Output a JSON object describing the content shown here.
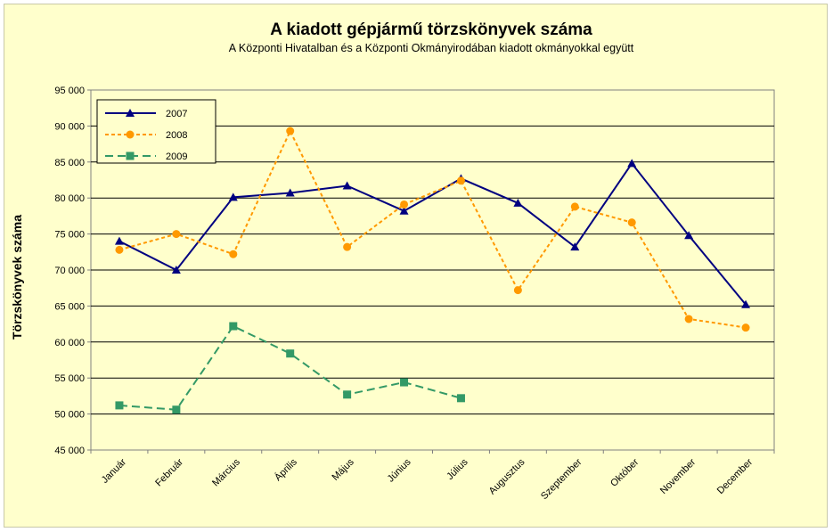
{
  "chart_data": {
    "type": "line",
    "title": "A  kiadott gépjármű  törzskönyvek száma",
    "subtitle": "A Központi Hivatalban és a Központi Okmányirodában kiadott okmányokkal együtt",
    "xlabel": "",
    "ylabel": "Törzskönyvek száma",
    "ylim": [
      45000,
      95000
    ],
    "y_ticks": [
      45000,
      50000,
      55000,
      60000,
      65000,
      70000,
      75000,
      80000,
      85000,
      90000,
      95000
    ],
    "y_tick_labels": [
      "45 000",
      "50 000",
      "55 000",
      "60 000",
      "65 000",
      "70 000",
      "75 000",
      "80 000",
      "85 000",
      "90 000",
      "95 000"
    ],
    "grid": true,
    "legend_position": "top-left",
    "categories": [
      "Január",
      "Február",
      "Március",
      "Április",
      "Május",
      "Június",
      "Július",
      "Augusztus",
      "Szeptember",
      "Október",
      "November",
      "December"
    ],
    "series": [
      {
        "name": "2007",
        "color": "#000080",
        "marker": "triangle",
        "dash": "solid",
        "values": [
          74000,
          70000,
          80100,
          80700,
          81700,
          78200,
          82700,
          79300,
          73200,
          84800,
          74800,
          65200
        ]
      },
      {
        "name": "2008",
        "color": "#ff9900",
        "marker": "circle",
        "dash": "dotted",
        "values": [
          72800,
          75000,
          72200,
          89300,
          73200,
          79100,
          82400,
          67200,
          78800,
          76600,
          63200,
          62000
        ]
      },
      {
        "name": "2009",
        "color": "#339966",
        "marker": "square",
        "dash": "dashed",
        "values": [
          51200,
          50600,
          62200,
          58400,
          52700,
          54400,
          52200,
          null,
          null,
          null,
          null,
          null
        ]
      }
    ]
  }
}
